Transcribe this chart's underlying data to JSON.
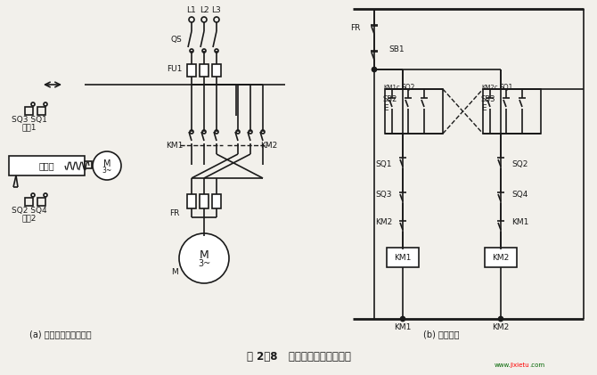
{
  "bg_color": "#f2f0eb",
  "lc": "#1a1a1a",
  "title": "图 2－8   自动循环往复控制线路",
  "sub_a": "(a) 工作自动循环示意图",
  "sub_b": "(b) 控制线路",
  "watermark": "www.jixietu.com",
  "figsize": [
    6.7,
    4.21
  ],
  "dpi": 100
}
